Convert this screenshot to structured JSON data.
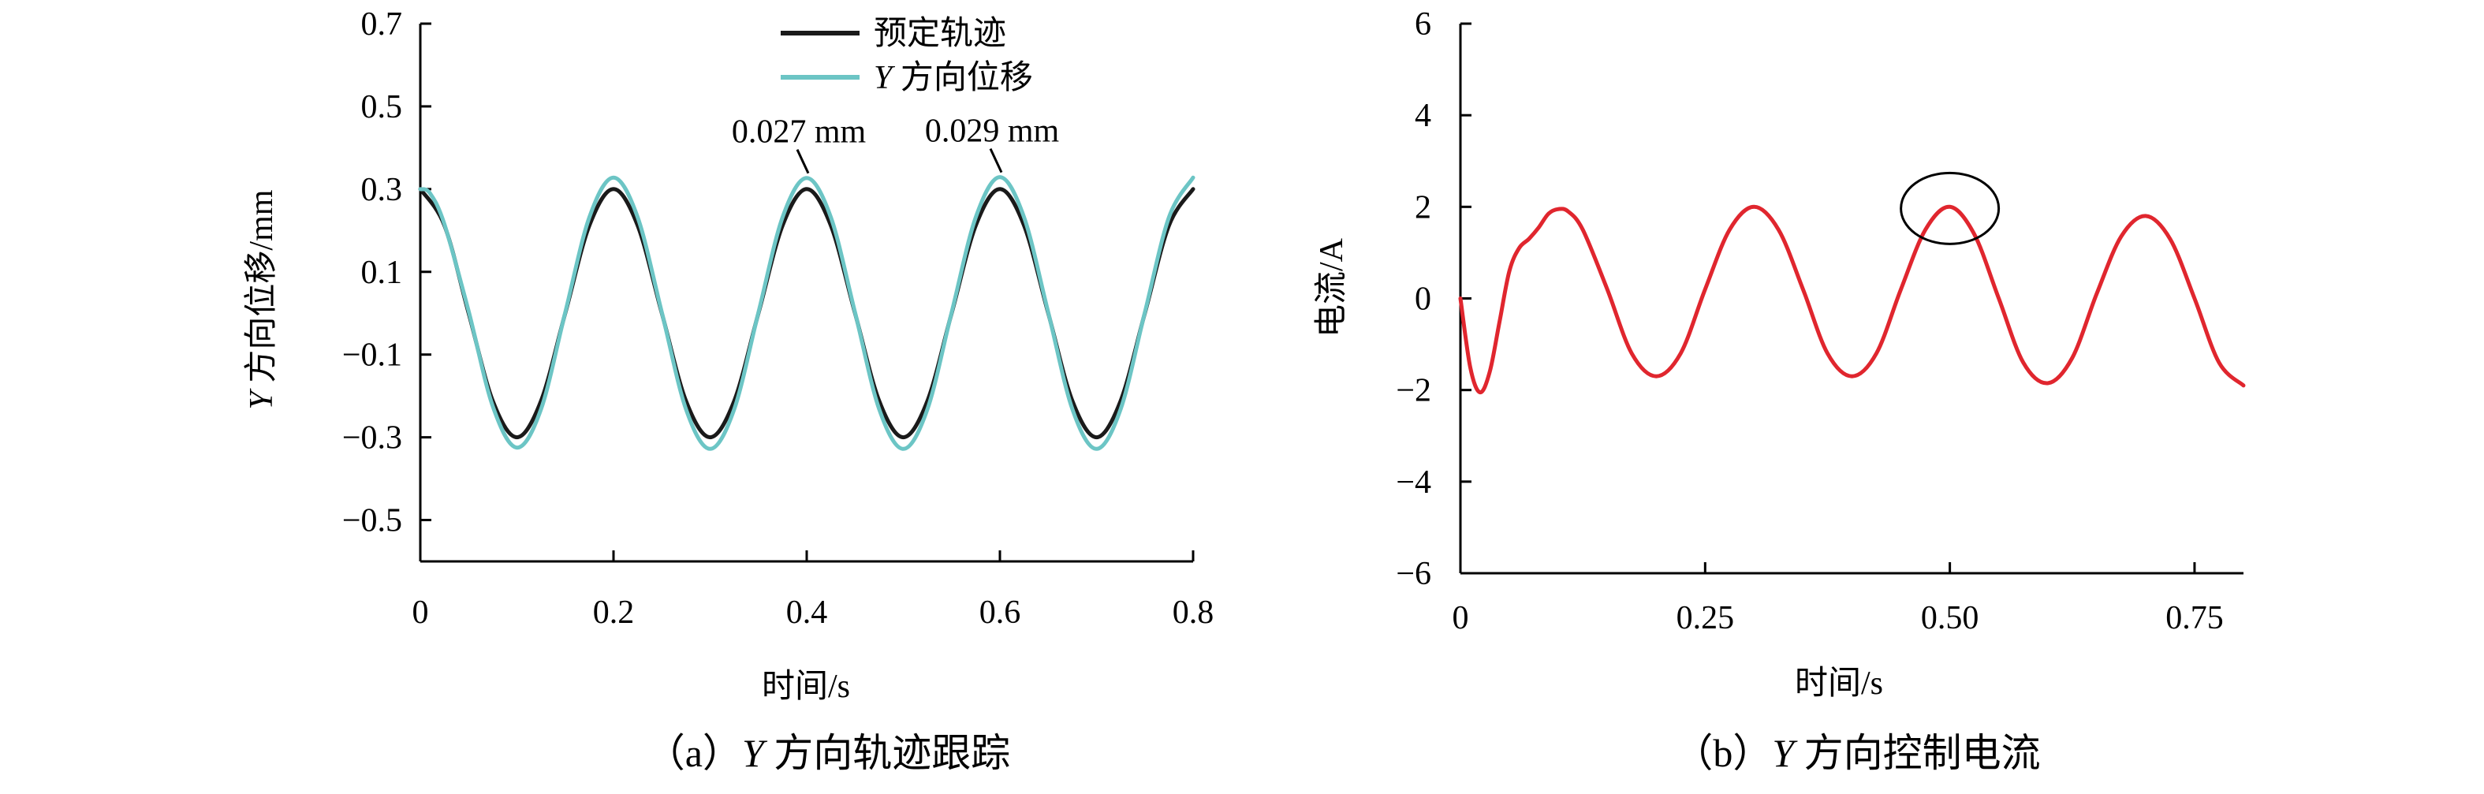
{
  "chart_data": [
    {
      "type": "line",
      "caption": {
        "prefix": "（a）",
        "var": "Y",
        "text": " 方向轨迹跟踪"
      },
      "xlabel": "时间/s",
      "ylabel": {
        "var": "Y",
        "text": " 方向位移/mm"
      },
      "xlim": [
        0,
        0.8
      ],
      "ylim": [
        -0.6,
        0.7
      ],
      "xticks": [
        0,
        0.2,
        0.4,
        0.6,
        0.8
      ],
      "xtick_labels": [
        "0",
        "0.2",
        "0.4",
        "0.6",
        "0.8"
      ],
      "yticks": [
        0.7,
        0.5,
        0.3,
        0.1,
        -0.1,
        -0.3,
        -0.5
      ],
      "ytick_labels": [
        "0.7",
        "0.5",
        "0.3",
        "0.1",
        "−0.1",
        "−0.3",
        "−0.5"
      ],
      "grid": false,
      "legend": {
        "position": "top-right"
      },
      "series": [
        {
          "name": "预定轨迹",
          "color": "#1a1a1a",
          "x": [
            0,
            0.025,
            0.05,
            0.075,
            0.1,
            0.125,
            0.15,
            0.175,
            0.2,
            0.225,
            0.25,
            0.275,
            0.3,
            0.325,
            0.35,
            0.375,
            0.4,
            0.425,
            0.45,
            0.475,
            0.5,
            0.525,
            0.55,
            0.575,
            0.6,
            0.625,
            0.65,
            0.675,
            0.7,
            0.725,
            0.75,
            0.775,
            0.8
          ],
          "y": [
            0.3,
            0.212,
            0,
            -0.212,
            -0.3,
            -0.212,
            0,
            0.212,
            0.3,
            0.212,
            0,
            -0.212,
            -0.3,
            -0.212,
            0,
            0.212,
            0.3,
            0.212,
            0,
            -0.212,
            -0.3,
            -0.212,
            0,
            0.212,
            0.3,
            0.212,
            0,
            -0.212,
            -0.3,
            -0.212,
            0,
            0.212,
            0.3
          ]
        },
        {
          "name": {
            "var": "Y",
            "text": " 方向位移"
          },
          "color": "#6cc5c5",
          "x": [
            0,
            0.01,
            0.025,
            0.05,
            0.075,
            0.1,
            0.125,
            0.15,
            0.175,
            0.2,
            0.225,
            0.25,
            0.275,
            0.3,
            0.325,
            0.35,
            0.375,
            0.4,
            0.425,
            0.45,
            0.475,
            0.5,
            0.525,
            0.55,
            0.575,
            0.6,
            0.625,
            0.65,
            0.675,
            0.7,
            0.725,
            0.75,
            0.775,
            0.8
          ],
          "y": [
            0.3,
            0.29,
            0.215,
            0.005,
            -0.225,
            -0.325,
            -0.232,
            0.002,
            0.232,
            0.328,
            0.232,
            0.002,
            -0.232,
            -0.328,
            -0.232,
            0.002,
            0.232,
            0.327,
            0.232,
            0.002,
            -0.232,
            -0.328,
            -0.232,
            0.002,
            0.232,
            0.329,
            0.232,
            0.002,
            -0.232,
            -0.328,
            -0.232,
            0.002,
            0.232,
            0.328
          ]
        }
      ],
      "annotations": [
        {
          "text": "0.027 mm",
          "x": 0.4,
          "y": 0.327
        },
        {
          "text": "0.029 mm",
          "x": 0.6,
          "y": 0.329
        }
      ]
    },
    {
      "type": "line",
      "caption": {
        "prefix": "（b）",
        "var": "Y",
        "text": " 方向控制电流"
      },
      "xlabel": "时间/s",
      "ylabel": "电流/A",
      "xlim": [
        0,
        0.8
      ],
      "ylim": [
        -6,
        6
      ],
      "xticks": [
        0,
        0.25,
        0.5,
        0.75
      ],
      "xtick_labels": [
        "0",
        "0.25",
        "0.50",
        "0.75"
      ],
      "yticks": [
        6,
        4,
        2,
        0,
        -2,
        -4,
        -6
      ],
      "ytick_labels": [
        "6",
        "4",
        "2",
        "0",
        "−2",
        "−4",
        "−6"
      ],
      "grid": false,
      "series": [
        {
          "color": "#e0262e",
          "x": [
            0,
            0.01,
            0.02,
            0.03,
            0.04,
            0.05,
            0.06,
            0.07,
            0.08,
            0.09,
            0.1,
            0.11,
            0.125,
            0.15,
            0.175,
            0.2,
            0.225,
            0.25,
            0.275,
            0.3,
            0.325,
            0.35,
            0.375,
            0.4,
            0.425,
            0.45,
            0.475,
            0.5,
            0.525,
            0.55,
            0.575,
            0.6,
            0.625,
            0.65,
            0.675,
            0.7,
            0.725,
            0.75,
            0.775,
            0.8
          ],
          "y": [
            0,
            -1.5,
            -2.05,
            -1.6,
            -0.5,
            0.6,
            1.1,
            1.3,
            1.55,
            1.85,
            1.95,
            1.9,
            1.5,
            0.2,
            -1.2,
            -1.7,
            -1.2,
            0.2,
            1.5,
            2.0,
            1.5,
            0.2,
            -1.2,
            -1.7,
            -1.2,
            0.2,
            1.5,
            2.0,
            1.4,
            0,
            -1.4,
            -1.85,
            -1.3,
            0.1,
            1.35,
            1.8,
            1.3,
            0,
            -1.4,
            -1.9
          ]
        }
      ],
      "annotations": [
        {
          "shape": "ellipse",
          "x": 0.5,
          "y": 2.0
        }
      ]
    }
  ]
}
